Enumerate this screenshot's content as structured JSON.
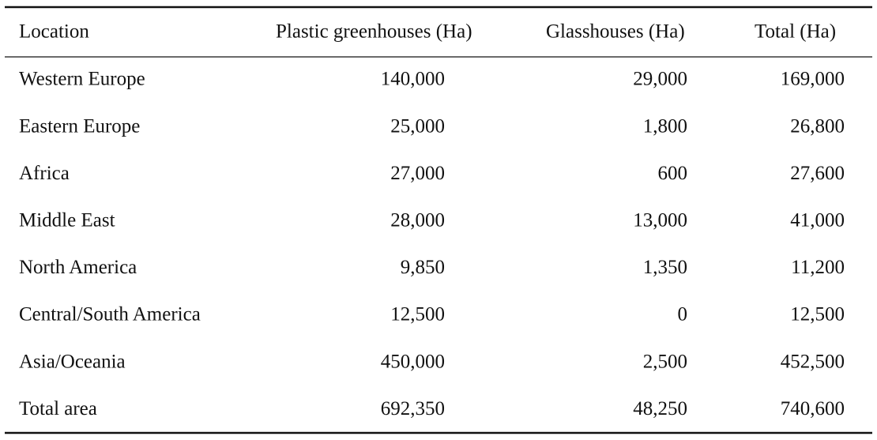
{
  "table": {
    "header": [
      "Location",
      "Plastic greenhouses (Ha)",
      "Glasshouses (Ha)",
      "Total (Ha)"
    ],
    "rows": [
      [
        "Western Europe",
        "140,000",
        "29,000",
        "169,000"
      ],
      [
        "Eastern Europe",
        "25,000",
        "1,800",
        "26,800"
      ],
      [
        "Africa",
        "27,000",
        "600",
        "27,600"
      ],
      [
        "Middle East",
        "28,000",
        "13,000",
        "41,000"
      ],
      [
        "North America",
        "9,850",
        "1,350",
        "11,200"
      ],
      [
        "Central/South America",
        "12,500",
        "0",
        "12,500"
      ],
      [
        "Asia/Oceania",
        "450,000",
        "2,500",
        "452,500"
      ],
      [
        "Total area",
        "692,350",
        "48,250",
        "740,600"
      ]
    ]
  }
}
